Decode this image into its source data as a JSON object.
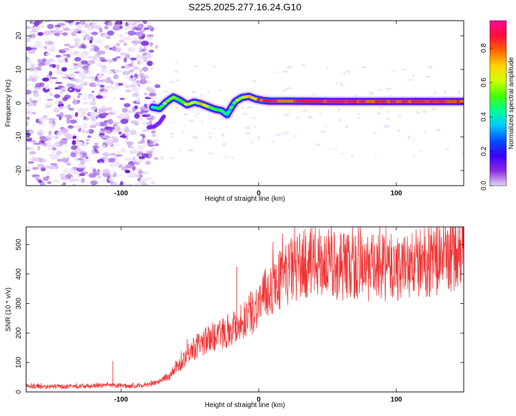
{
  "chart_data": [
    {
      "type": "heatmap",
      "title": "S225.2025.277.16.24.G10",
      "xlabel": "Height of straight line (km)",
      "ylabel": "Frequency (Hz)",
      "xlim": [
        -169,
        149
      ],
      "ylim": [
        -24.5,
        24.5
      ],
      "x_ticks": [
        -100,
        0,
        100
      ],
      "y_ticks": [
        -20,
        -10,
        0,
        10,
        20
      ],
      "colorbar": {
        "label": "Normalized spectral amplitude",
        "range": [
          0,
          0.96
        ],
        "ticks": [
          "0.0",
          "0.2",
          "0.4",
          "0.6",
          "0.8"
        ],
        "colors": [
          "#e7d7f4",
          "#8a2be2",
          "#3c00ff",
          "#0050ff",
          "#00c8ff",
          "#00ff96",
          "#46ff00",
          "#d2ff00",
          "#ffd200",
          "#ff6400",
          "#ff0a3c",
          "#ff0a9a"
        ]
      },
      "noise_region_x": [
        -169,
        -79
      ],
      "ridge": {
        "x": [
          -77,
          -72,
          -67,
          -62,
          -57,
          -52,
          -47,
          -42,
          -37,
          -32,
          -27,
          -23,
          -21,
          -17,
          -12,
          -7,
          -2,
          3,
          8,
          20,
          50,
          100,
          149
        ],
        "freq": [
          -1.2,
          -1.6,
          0.4,
          1.8,
          0.8,
          -0.5,
          0.3,
          -0.2,
          -1.0,
          -1.8,
          -2.2,
          -3.4,
          -2.0,
          0.5,
          1.7,
          2.0,
          1.2,
          0.8,
          0.6,
          0.6,
          0.5,
          0.5,
          0.5
        ],
        "amplitude": [
          0.45,
          0.5,
          0.6,
          0.6,
          0.55,
          0.65,
          0.6,
          0.7,
          0.6,
          0.55,
          0.5,
          0.45,
          0.5,
          0.55,
          0.65,
          0.75,
          0.8,
          0.85,
          0.9,
          0.88,
          0.9,
          0.92,
          0.9
        ]
      },
      "secondary_ridge": {
        "x": [
          -80,
          -76,
          -72,
          -69
        ],
        "freq": [
          -7.2,
          -7.0,
          -5.8,
          -4.0
        ]
      }
    },
    {
      "type": "line",
      "xlabel": "Height of straight line (km)",
      "ylabel": "SNR (10 * v/v)",
      "xlim": [
        -169,
        149
      ],
      "ylim": [
        0,
        560
      ],
      "x_ticks": [
        -100,
        0,
        100
      ],
      "y_ticks": [
        0,
        100,
        200,
        300,
        400,
        500
      ],
      "color": "#ef3434",
      "trend": {
        "x": [
          -169,
          -140,
          -110,
          -90,
          -80,
          -72,
          -65,
          -58,
          -50,
          -40,
          -30,
          -20,
          -12,
          -5,
          0,
          5,
          10,
          15,
          20,
          30,
          40,
          60,
          80,
          100,
          120,
          135,
          149
        ],
        "y": [
          20,
          18,
          22,
          20,
          25,
          35,
          55,
          90,
          140,
          170,
          195,
          215,
          240,
          270,
          300,
          330,
          360,
          380,
          400,
          430,
          440,
          430,
          420,
          420,
          440,
          460,
          470
        ]
      },
      "spikes": [
        {
          "x": -106,
          "y": 105
        },
        {
          "x": -52,
          "y": 180
        },
        {
          "x": -16,
          "y": 425
        },
        {
          "x": 45,
          "y": 530
        },
        {
          "x": 88,
          "y": 560
        },
        {
          "x": 141,
          "y": 560
        }
      ]
    }
  ]
}
